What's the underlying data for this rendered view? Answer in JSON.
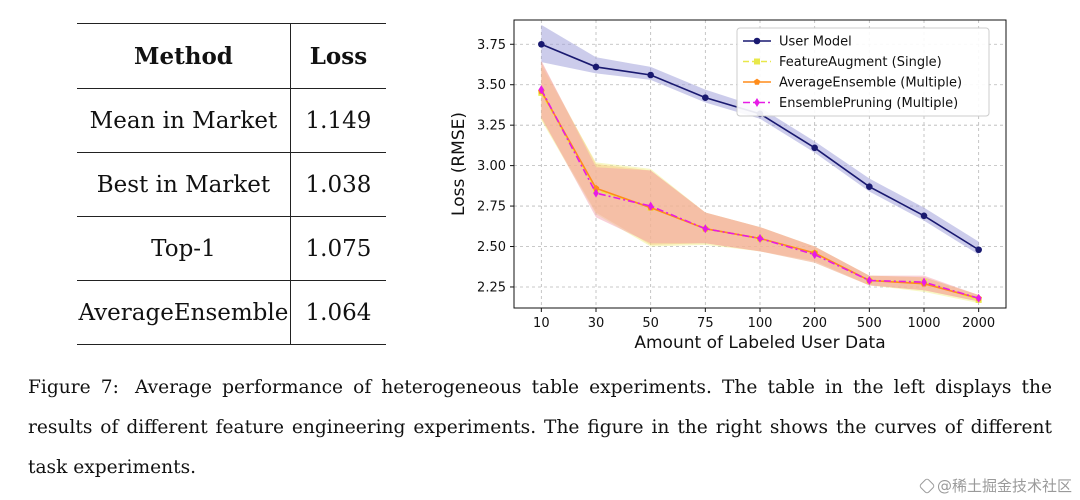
{
  "table": {
    "headers": [
      "Method",
      "Loss"
    ],
    "rows": [
      [
        "Mean in Market",
        "1.149"
      ],
      [
        "Best in Market",
        "1.038"
      ],
      [
        "Top-1",
        "1.075"
      ],
      [
        "AverageEnsemble",
        "1.064"
      ]
    ]
  },
  "chart_data": {
    "type": "line",
    "title": "",
    "xlabel": "Amount of Labeled User Data",
    "ylabel": "Loss (RMSE)",
    "categories": [
      "10",
      "30",
      "50",
      "75",
      "100",
      "200",
      "500",
      "1000",
      "2000"
    ],
    "y_ticks": [
      "2.25",
      "2.50",
      "2.75",
      "3.00",
      "3.25",
      "3.50",
      "3.75"
    ],
    "ylim": [
      2.12,
      3.9
    ],
    "grid": true,
    "legend_position": "top-right",
    "series": [
      {
        "name": "User Model",
        "color": "#191970",
        "marker": "circle",
        "linestyle": "solid",
        "values": [
          3.75,
          3.61,
          3.56,
          3.42,
          3.32,
          3.11,
          2.87,
          2.69,
          2.48
        ],
        "band_lower": [
          3.64,
          3.57,
          3.53,
          3.39,
          3.29,
          3.08,
          2.84,
          2.66,
          2.45
        ],
        "band_upper": [
          3.87,
          3.67,
          3.61,
          3.47,
          3.36,
          3.15,
          2.92,
          2.74,
          2.53
        ],
        "band_color": "#9a9ad8"
      },
      {
        "name": "FeatureAugment (Single)",
        "color": "#e8e84a",
        "marker": "square",
        "linestyle": "dashed",
        "values": [
          3.45,
          2.85,
          2.74,
          2.61,
          2.55,
          2.46,
          2.29,
          2.28,
          2.17
        ],
        "band_lower": [
          3.28,
          2.7,
          2.5,
          2.51,
          2.47,
          2.4,
          2.26,
          2.22,
          2.15
        ],
        "band_upper": [
          3.62,
          3.02,
          2.98,
          2.71,
          2.62,
          2.5,
          2.32,
          2.31,
          2.2
        ],
        "band_color": "#f0f080"
      },
      {
        "name": "AverageEnsemble (Multiple)",
        "color": "#ff8c1a",
        "marker": "pentagon",
        "linestyle": "solid",
        "values": [
          3.46,
          2.86,
          2.74,
          2.61,
          2.55,
          2.46,
          2.29,
          2.27,
          2.18
        ],
        "band_lower": [
          3.29,
          2.71,
          2.51,
          2.52,
          2.47,
          2.41,
          2.26,
          2.23,
          2.16
        ],
        "band_upper": [
          3.64,
          3.01,
          2.97,
          2.71,
          2.62,
          2.5,
          2.32,
          2.31,
          2.2
        ],
        "band_color": "#f7c27a"
      },
      {
        "name": "EnsemblePruning (Multiple)",
        "color": "#e61be6",
        "marker": "diamond",
        "linestyle": "dashdot",
        "values": [
          3.47,
          2.83,
          2.75,
          2.61,
          2.55,
          2.45,
          2.29,
          2.28,
          2.18
        ],
        "band_lower": [
          3.3,
          2.68,
          2.52,
          2.52,
          2.47,
          2.4,
          2.26,
          2.23,
          2.16
        ],
        "band_upper": [
          3.65,
          2.99,
          2.97,
          2.71,
          2.62,
          2.5,
          2.32,
          2.32,
          2.2
        ],
        "band_color": "#f29aa8"
      }
    ]
  },
  "caption": {
    "label": "Figure 7:",
    "text": "Average performance of heterogeneous table experiments. The table in the left displays the results of different feature engineering experiments. The figure in the right shows the curves of different task experiments."
  },
  "watermark": {
    "text": "@稀土掘金技术社区"
  }
}
